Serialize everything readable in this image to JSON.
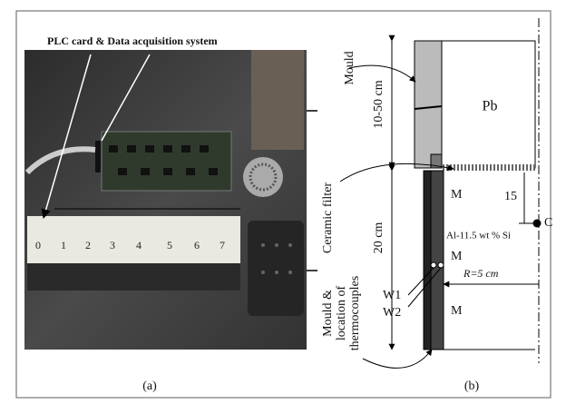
{
  "photo": {
    "label": "PLC card & Data acquisition system",
    "digits": [
      "0",
      "1",
      "2",
      "3",
      "4",
      "5",
      "6",
      "7"
    ],
    "caption": "(a)"
  },
  "schematic": {
    "mould": "Mould",
    "height_top": "10-50 cm",
    "pb": "Pb",
    "ceramic_filter": "Ceramic filter",
    "depth": "15",
    "point_c": "C",
    "m_labels": [
      "M",
      "M",
      "M"
    ],
    "alloy": "Al-11.5 wt % Si",
    "height_bottom": "20 cm",
    "radius": "R=5 cm",
    "w1": "W1",
    "w2": "W2",
    "mould_location": [
      "Mould &",
      "location of",
      "thermocouples"
    ],
    "caption": "(b)"
  }
}
